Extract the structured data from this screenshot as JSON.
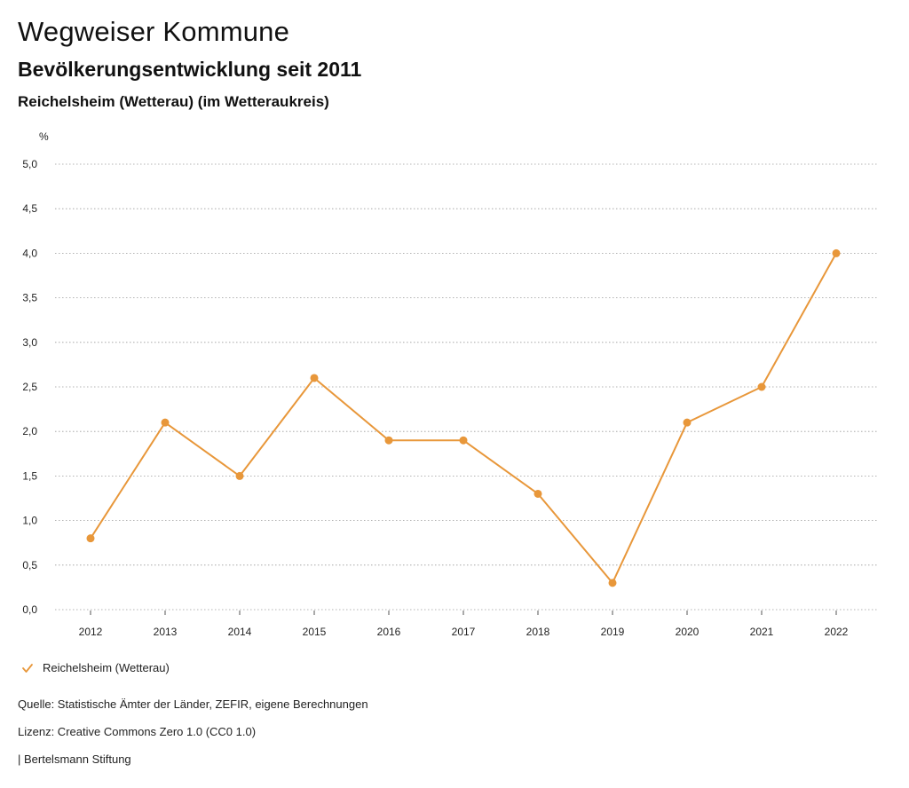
{
  "header": {
    "title": "Wegweiser Kommune",
    "subtitle": "Bevölkerungsentwicklung seit 2011",
    "location": "Reichelsheim (Wetterau) (im Wetteraukreis)"
  },
  "chart_data": {
    "type": "line",
    "title": "Bevölkerungsentwicklung seit 2011",
    "xlabel": "",
    "ylabel": "%",
    "x": [
      "2012",
      "2013",
      "2014",
      "2015",
      "2016",
      "2017",
      "2018",
      "2019",
      "2020",
      "2021",
      "2022"
    ],
    "series": [
      {
        "name": "Reichelsheim (Wetterau)",
        "color": "#E8973A",
        "values": [
          0.8,
          2.1,
          1.5,
          2.6,
          1.9,
          1.9,
          1.3,
          0.3,
          2.1,
          2.5,
          4.0
        ]
      }
    ],
    "ylim": [
      0,
      5
    ],
    "yticks": [
      "0,0",
      "0,5",
      "1,0",
      "1,5",
      "2,0",
      "2,5",
      "3,0",
      "3,5",
      "4,0",
      "4,5",
      "5,0"
    ],
    "grid": true,
    "legend_position": "bottom-left"
  },
  "legend": {
    "label": "Reichelsheim (Wetterau)",
    "icon": "check-icon"
  },
  "footer": {
    "source": "Quelle: Statistische Ämter der Länder, ZEFIR, eigene Berechnungen",
    "license": "Lizenz: Creative Commons Zero 1.0 (CC0 1.0)",
    "publisher": "| Bertelsmann Stiftung"
  }
}
